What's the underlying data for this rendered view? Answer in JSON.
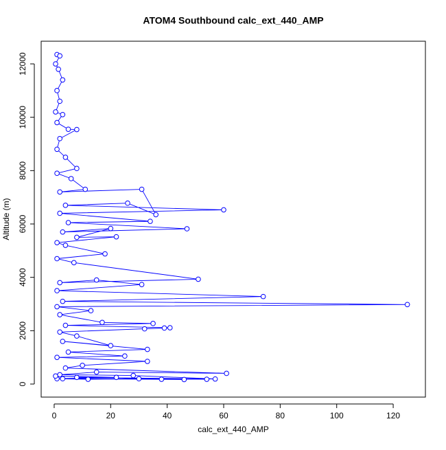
{
  "chart_data": {
    "type": "line",
    "title": "ATOM4 Southbound calc_ext_440_AMP",
    "x_label": "calc_ext_440_AMP",
    "y_label": "Altitude (m)",
    "color": "#0000ff",
    "markers": "open-circle",
    "x": [
      1,
      2,
      0.5,
      1.5,
      3,
      1,
      2,
      0.5,
      3,
      1,
      5,
      8,
      2,
      1,
      4,
      8,
      1,
      6,
      11,
      2,
      31,
      36,
      26,
      4,
      60,
      2,
      34,
      5,
      47,
      3,
      20,
      8,
      22,
      1,
      4,
      18,
      1,
      7,
      51,
      2,
      15,
      31,
      1,
      74,
      3,
      125,
      1,
      13,
      2,
      17,
      35,
      4,
      41,
      32,
      39,
      2,
      8,
      20,
      3,
      33,
      5,
      25,
      1,
      33,
      10,
      4,
      61,
      15,
      2,
      28,
      57,
      8,
      54,
      3,
      46,
      30,
      12,
      1,
      22,
      0.5,
      38
    ],
    "values": [
      12350,
      12300,
      12000,
      11800,
      11400,
      11000,
      10600,
      10200,
      10100,
      9800,
      9550,
      9540,
      9200,
      8800,
      8500,
      8080,
      7900,
      7700,
      7300,
      7200,
      7300,
      6350,
      6780,
      6700,
      6530,
      6400,
      6100,
      6050,
      5820,
      5700,
      5830,
      5500,
      5520,
      5300,
      5200,
      4880,
      4700,
      4550,
      3930,
      3800,
      3900,
      3730,
      3500,
      3280,
      3100,
      2980,
      2900,
      2750,
      2600,
      2310,
      2270,
      2200,
      2110,
      2070,
      2100,
      1950,
      1800,
      1440,
      1600,
      1300,
      1200,
      1050,
      1000,
      850,
      700,
      600,
      400,
      450,
      350,
      320,
      190,
      250,
      180,
      200,
      170,
      200,
      180,
      200,
      250,
      300,
      180
    ],
    "xlim": [
      -4.6,
      131.4
    ],
    "ylim": [
      -489,
      12850
    ],
    "xticks": [
      0,
      20,
      40,
      60,
      80,
      100,
      120
    ],
    "yticks": [
      0,
      2000,
      4000,
      6000,
      8000,
      10000,
      12000
    ]
  }
}
